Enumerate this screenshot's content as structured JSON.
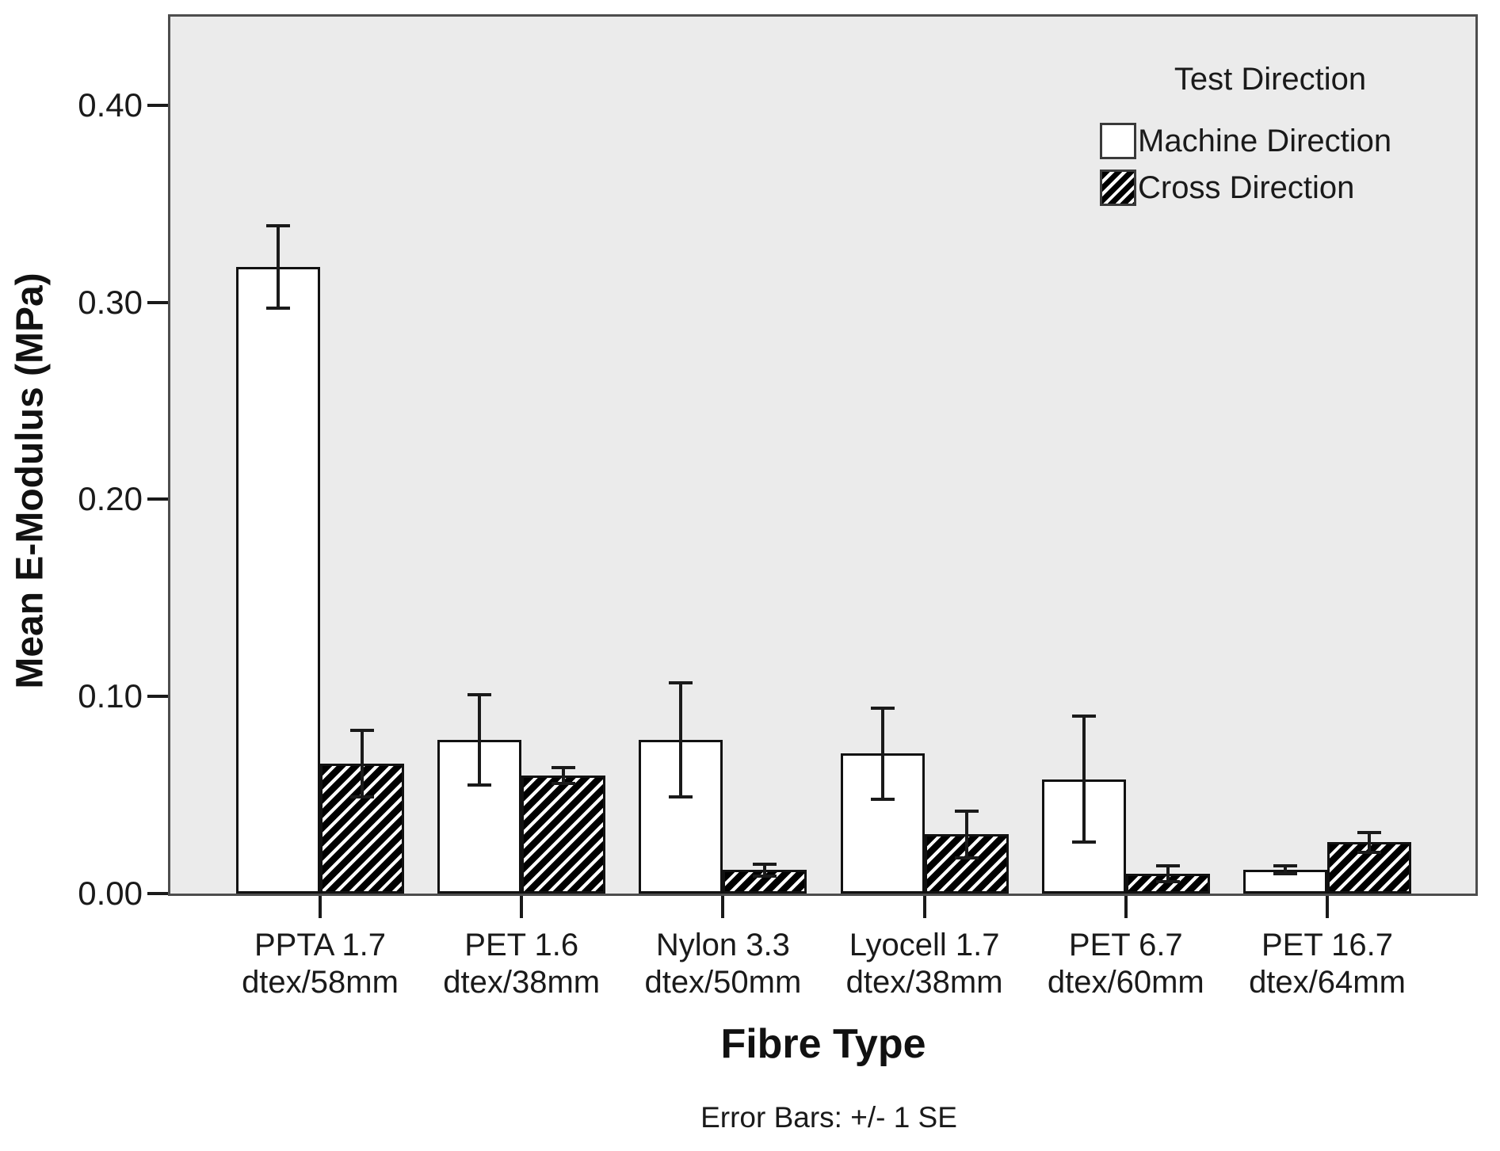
{
  "figure": {
    "y_axis_title": "Mean E-Modulus (MPa)",
    "x_axis_title": "Fibre Type",
    "footnote": "Error Bars: +/- 1 SE"
  },
  "legend": {
    "title": "Test Direction",
    "position": "top-right-inside-plot",
    "items": [
      {
        "label": "Machine Direction",
        "swatch": "solid-white"
      },
      {
        "label": "Cross Direction",
        "swatch": "hatched"
      }
    ]
  },
  "colors": {
    "plot_background": "#ebebeb",
    "frame": "#4d4d4d",
    "bar_fill_machine": "#ffffff",
    "bar_hatch_cross": "#000000",
    "bar_border": "#111111",
    "error_bar": "#1a1a1a",
    "text": "#1a1a1a"
  },
  "chart_data": {
    "type": "bar",
    "title": "",
    "xlabel": "Fibre Type",
    "ylabel": "Mean E-Modulus (MPa)",
    "footnote": "Error Bars: +/- 1 SE",
    "grid": false,
    "legend_position": "top-right",
    "ylim": [
      0,
      0.445
    ],
    "yticks": [
      0.0,
      0.1,
      0.2,
      0.3,
      0.4
    ],
    "ytick_labels": [
      "0.00",
      "0.10",
      "0.20",
      "0.30",
      "0.40"
    ],
    "categories": [
      {
        "line1": "PPTA 1.7",
        "line2": "dtex/58mm"
      },
      {
        "line1": "PET 1.6",
        "line2": "dtex/38mm"
      },
      {
        "line1": "Nylon 3.3",
        "line2": "dtex/50mm"
      },
      {
        "line1": "Lyocell 1.7",
        "line2": "dtex/38mm"
      },
      {
        "line1": "PET 6.7",
        "line2": "dtex/60mm"
      },
      {
        "line1": "PET 16.7",
        "line2": "dtex/64mm"
      }
    ],
    "series": [
      {
        "name": "Machine Direction",
        "pattern": "solid-white",
        "values": [
          0.318,
          0.078,
          0.078,
          0.071,
          0.058,
          0.012
        ],
        "se": [
          0.021,
          0.023,
          0.029,
          0.023,
          0.032,
          0.002
        ]
      },
      {
        "name": "Cross Direction",
        "pattern": "hatched",
        "values": [
          0.066,
          0.06,
          0.012,
          0.03,
          0.01,
          0.026
        ],
        "se": [
          0.017,
          0.004,
          0.003,
          0.012,
          0.004,
          0.005
        ]
      }
    ],
    "error_bars": "+/- 1 SE"
  }
}
